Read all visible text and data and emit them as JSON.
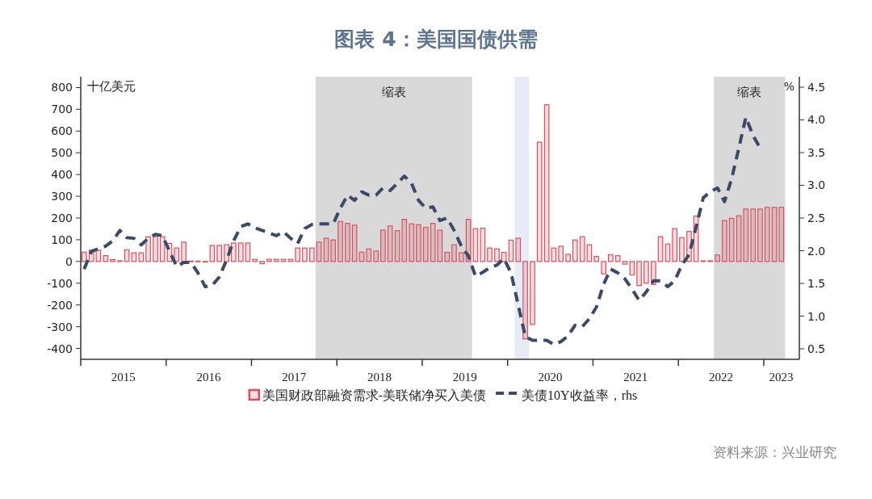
{
  "chart_data": {
    "type": "bar",
    "title": "图表 4：美国国债供需",
    "ylabel": "十亿美元",
    "y2label": "%",
    "x": [
      "2015-01-16",
      "2015-02-15",
      "2015-03-16",
      "2015-04-16",
      "2015-05-16",
      "2015-06-16",
      "2015-07-16",
      "2015-08-16",
      "2015-09-16",
      "2015-10-16",
      "2015-11-16",
      "2015-12-16",
      "2016-01-16",
      "2016-02-15",
      "2016-03-16",
      "2016-04-16",
      "2016-05-16",
      "2016-06-16",
      "2016-07-16",
      "2016-08-16",
      "2016-09-16",
      "2016-10-16",
      "2016-11-16",
      "2016-12-16",
      "2017-01-16",
      "2017-02-15",
      "2017-03-16",
      "2017-04-16",
      "2017-05-16",
      "2017-06-16",
      "2017-07-16",
      "2017-08-16",
      "2017-09-16",
      "2017-10-16",
      "2017-11-16",
      "2017-12-16",
      "2018-01-16",
      "2018-02-15",
      "2018-03-16",
      "2018-04-16",
      "2018-05-16",
      "2018-06-16",
      "2018-07-16",
      "2018-08-16",
      "2018-09-16",
      "2018-10-16",
      "2018-11-16",
      "2018-12-16",
      "2019-01-16",
      "2019-02-15",
      "2019-03-16",
      "2019-04-16",
      "2019-05-16",
      "2019-06-16",
      "2019-07-16",
      "2019-08-16",
      "2019-09-16",
      "2019-10-16",
      "2019-11-16",
      "2019-12-16",
      "2020-01-16",
      "2020-02-15",
      "2020-03-16",
      "2020-04-16",
      "2020-05-16",
      "2020-06-16",
      "2020-07-16",
      "2020-08-16",
      "2020-09-16",
      "2020-10-16",
      "2020-11-16",
      "2020-12-16",
      "2021-01-16",
      "2021-02-15",
      "2021-03-16",
      "2021-04-16",
      "2021-05-16",
      "2021-06-16",
      "2021-07-16",
      "2021-08-16",
      "2021-09-16",
      "2021-10-16",
      "2021-11-16",
      "2021-12-16",
      "2022-01-16",
      "2022-02-15",
      "2022-03-16",
      "2022-04-16",
      "2022-05-16",
      "2022-06-16",
      "2022-07-16",
      "2022-08-16",
      "2022-09-16",
      "2022-10-16",
      "2022-11-16",
      "2022-12-16",
      "2023-01-16",
      "2023-02-15",
      "2023-03-16"
    ],
    "series": [
      {
        "name": "美国财政部融资需求-美联储净买入美债",
        "color": "#d9505f",
        "values": [
          43,
          52,
          52,
          27,
          9,
          3,
          54,
          40,
          40,
          114,
          114,
          114,
          83,
          62,
          89,
          2,
          2,
          -2,
          74,
          74,
          77,
          85,
          85,
          85,
          10,
          -10,
          10,
          10,
          10,
          10,
          62,
          62,
          62,
          89,
          107,
          99,
          184,
          175,
          167,
          43,
          58,
          48,
          144,
          163,
          142,
          194,
          173,
          169,
          157,
          175,
          144,
          42,
          77,
          40,
          194,
          151,
          153,
          62,
          58,
          42,
          98,
          107,
          -356,
          -290,
          549,
          721,
          62,
          70,
          33,
          99,
          114,
          77,
          23,
          -57,
          31,
          27,
          -12,
          -62,
          -111,
          -100,
          -106,
          114,
          80,
          151,
          110,
          138,
          209,
          3,
          3,
          30,
          188,
          198,
          210,
          241,
          241,
          241,
          249,
          249,
          249
        ]
      },
      {
        "name": "美债10Y收益率，rhs",
        "type": "line",
        "axis": "y2",
        "line_style": "dashed",
        "color": "#3b4a66",
        "values": [
          1.72,
          1.99,
          2.03,
          2.07,
          2.15,
          2.31,
          2.2,
          2.19,
          2.09,
          2.19,
          2.25,
          2.23,
          1.99,
          1.76,
          1.82,
          1.82,
          1.66,
          1.45,
          1.47,
          1.6,
          1.86,
          2.15,
          2.37,
          2.41,
          2.35,
          2.31,
          2.27,
          2.23,
          2.29,
          2.19,
          2.11,
          2.34,
          2.4,
          2.41,
          2.41,
          2.41,
          2.65,
          2.85,
          2.77,
          2.9,
          2.85,
          2.85,
          2.96,
          2.92,
          3.03,
          3.14,
          3.03,
          2.77,
          2.65,
          2.67,
          2.46,
          2.5,
          2.31,
          2.07,
          1.92,
          1.61,
          1.67,
          1.74,
          1.78,
          1.88,
          1.66,
          1.17,
          0.69,
          0.63,
          0.63,
          0.63,
          0.57,
          0.61,
          0.7,
          0.86,
          0.84,
          0.96,
          1.14,
          1.49,
          1.72,
          1.66,
          1.57,
          1.41,
          1.24,
          1.37,
          1.54,
          1.54,
          1.45,
          1.54,
          1.78,
          1.94,
          2.36,
          2.81,
          2.9,
          2.96,
          2.75,
          3.1,
          3.57,
          4.04,
          3.76,
          3.57,
          null,
          null,
          null
        ]
      }
    ],
    "xlim": [
      "2015-01",
      "2023-06"
    ],
    "xticks": [
      {
        "value": "2015-01",
        "label": null
      },
      {
        "value": "2015-07",
        "label": "2015"
      },
      {
        "value": "2016-01",
        "label": null
      },
      {
        "value": "2016-07",
        "label": "2016"
      },
      {
        "value": "2017-01",
        "label": null
      },
      {
        "value": "2017-07",
        "label": "2017"
      },
      {
        "value": "2018-01",
        "label": null
      },
      {
        "value": "2018-07",
        "label": "2018"
      },
      {
        "value": "2019-01",
        "label": null
      },
      {
        "value": "2019-07",
        "label": "2019"
      },
      {
        "value": "2020-01",
        "label": null
      },
      {
        "value": "2020-07",
        "label": "2020"
      },
      {
        "value": "2021-01",
        "label": null
      },
      {
        "value": "2021-07",
        "label": "2021"
      },
      {
        "value": "2022-01",
        "label": null
      },
      {
        "value": "2022-07",
        "label": "2022"
      },
      {
        "value": "2023-01",
        "label": null
      },
      {
        "value": "2023-03-15",
        "label": "2023"
      }
    ],
    "ylim": [
      -450,
      850
    ],
    "yticks": [
      -400,
      -300,
      -200,
      -100,
      0,
      100,
      200,
      300,
      400,
      500,
      600,
      700,
      800
    ],
    "y2lim": [
      0.34,
      4.66
    ],
    "y2ticks": [
      0.5,
      {
        "value": 1,
        "label": "1.0"
      },
      1.5,
      {
        "value": 2,
        "label": "2.0"
      },
      2.5,
      {
        "value": 3,
        "label": "3.0"
      },
      3.5,
      {
        "value": 4,
        "label": "4.0"
      },
      4.5
    ],
    "bands": [
      {
        "axis": "x",
        "from": "2017-10",
        "to": "2019-08",
        "label": "缩表",
        "color": "#d9d9d9"
      },
      {
        "axis": "x",
        "from": "2020-02",
        "to": "2020-04",
        "color": "#e6ebf5"
      },
      {
        "axis": "x",
        "from": "2022-06",
        "to": "2023-04",
        "label": "缩表",
        "color": "#d9d9d9"
      }
    ],
    "legend": "bottom",
    "annotations": [
      "资料来源：兴业研究"
    ]
  }
}
